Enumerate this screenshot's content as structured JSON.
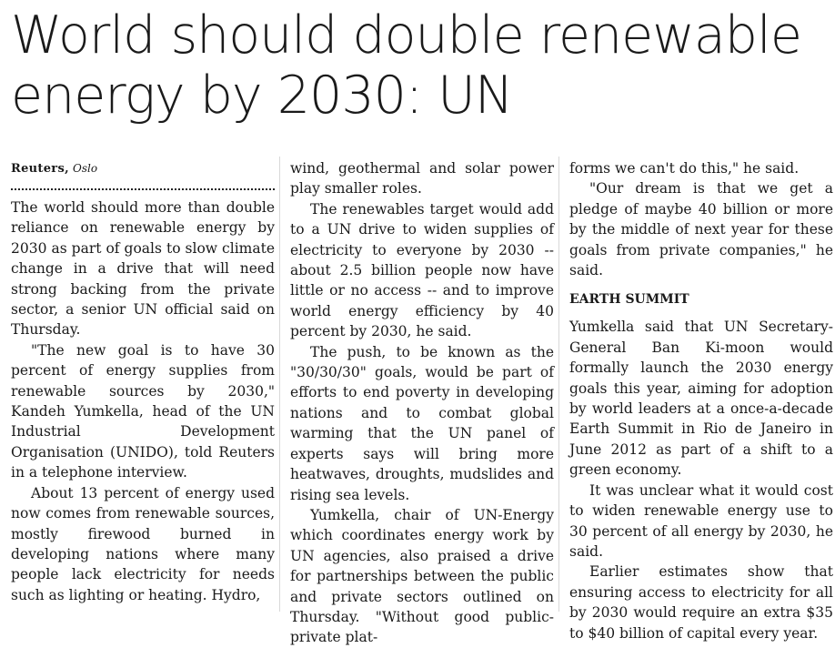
{
  "headline": {
    "line1": "World should double renewable",
    "line2": "energy by 2030: UN"
  },
  "byline": {
    "agency": "Reuters,",
    "city": "Oslo"
  },
  "col1": [
    "The world should more than double reliance on renewable energy by 2030 as part of goals to slow climate change in a drive that will need strong backing from the private sector, a senior UN official said on Thursday.",
    "\"The new goal is to have 30 percent of energy supplies from renewable sources by 2030,\" Kandeh Yumkella, head of the UN Industrial Development Organisation (UNIDO), told Reuters in a telephone interview.",
    "About 13 percent of energy used now comes from renewable sources, mostly firewood burned in developing nations where many people lack electricity for needs such as lighting or heating. Hydro,"
  ],
  "col2": [
    "wind, geothermal and solar power play smaller roles.",
    "The renewables target would add to a UN drive to widen supplies of electricity to everyone by 2030 -- about 2.5 billion people now have little or no access -- and to improve world energy efficiency by 40 percent by 2030, he said.",
    "The push, to be known as the \"30/30/30\" goals, would be part of efforts to end poverty in developing nations and to combat global warming that the UN panel of experts says will bring more heatwaves, droughts, mudslides and rising sea levels.",
    "Yumkella, chair of UN-Energy which coordinates energy work by UN agencies, also praised a drive for partnerships between the public and private sectors outlined on Thursday. \"Without good public-private plat-"
  ],
  "col3_top": [
    "forms we can't do this,\" he said.",
    "\"Our dream is that we get a pledge of maybe 40 billion or more by the middle of next year for these goals from private companies,\" he said."
  ],
  "subhead": "EARTH SUMMIT",
  "col3_bottom": [
    "Yumkella said that UN Secretary-General Ban Ki-moon would formally launch the 2030 energy goals this year, aiming for adoption by world leaders at a once-a-decade Earth Summit in Rio de Janeiro in June 2012 as part of a shift to a green economy.",
    "It was unclear what it would cost to widen renewable energy use to 30 percent of all energy by 2030, he said.",
    "Earlier estimates show that ensuring access to electricity for all by 2030 would require an extra $35 to $40 billion of capital every year."
  ]
}
